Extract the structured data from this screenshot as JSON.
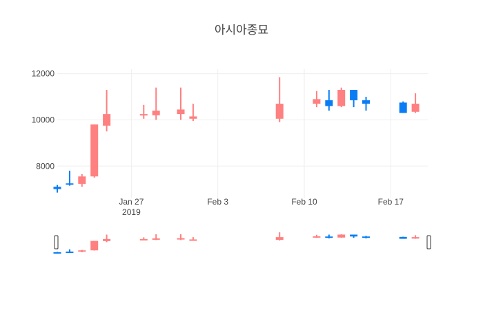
{
  "chart_data": {
    "type": "candlestick",
    "title": "아시아종묘",
    "xlabel": "",
    "ylabel": "",
    "ylim": [
      6600,
      12200
    ],
    "xlim": [
      "2019-01-21",
      "2019-02-20"
    ],
    "y_ticks": [
      "8000",
      "10000",
      "12000"
    ],
    "x_ticks": [
      {
        "date": "2019-01-27",
        "label": "Jan 27",
        "sublabel": "2019"
      },
      {
        "date": "2019-02-03",
        "label": "Feb 3",
        "sublabel": ""
      },
      {
        "date": "2019-02-10",
        "label": "Feb 10",
        "sublabel": ""
      },
      {
        "date": "2019-02-17",
        "label": "Feb 17",
        "sublabel": ""
      }
    ],
    "grid": true,
    "range_slider": true,
    "increasing_color": "#ff8080",
    "decreasing_color": "#0a7df5",
    "candles": [
      {
        "date": "2019-01-21",
        "open": 7100,
        "high": 7180,
        "low": 6850,
        "close": 7000
      },
      {
        "date": "2019-01-22",
        "open": 7250,
        "high": 7800,
        "low": 7150,
        "close": 7200
      },
      {
        "date": "2019-01-23",
        "open": 7230,
        "high": 7650,
        "low": 7100,
        "close": 7550
      },
      {
        "date": "2019-01-24",
        "open": 7550,
        "high": 9800,
        "low": 7500,
        "close": 9800
      },
      {
        "date": "2019-01-25",
        "open": 9750,
        "high": 11300,
        "low": 9500,
        "close": 10250
      },
      {
        "date": "2019-01-28",
        "open": 10200,
        "high": 10650,
        "low": 10050,
        "close": 10250
      },
      {
        "date": "2019-01-29",
        "open": 10200,
        "high": 11400,
        "low": 10000,
        "close": 10400
      },
      {
        "date": "2019-01-31",
        "open": 10250,
        "high": 11400,
        "low": 10000,
        "close": 10450
      },
      {
        "date": "2019-02-01",
        "open": 10050,
        "high": 10700,
        "low": 9950,
        "close": 10150
      },
      {
        "date": "2019-02-08",
        "open": 10050,
        "high": 11850,
        "low": 9900,
        "close": 10700
      },
      {
        "date": "2019-02-11",
        "open": 10700,
        "high": 11250,
        "low": 10550,
        "close": 10900
      },
      {
        "date": "2019-02-12",
        "open": 10850,
        "high": 11300,
        "low": 10400,
        "close": 10600
      },
      {
        "date": "2019-02-13",
        "open": 10600,
        "high": 11400,
        "low": 10550,
        "close": 11300
      },
      {
        "date": "2019-02-14",
        "open": 11300,
        "high": 11300,
        "low": 10550,
        "close": 10850
      },
      {
        "date": "2019-02-15",
        "open": 10850,
        "high": 11000,
        "low": 10400,
        "close": 10700
      },
      {
        "date": "2019-02-18",
        "open": 10750,
        "high": 10800,
        "low": 10300,
        "close": 10300
      },
      {
        "date": "2019-02-19",
        "open": 10350,
        "high": 11150,
        "low": 10300,
        "close": 10700
      }
    ]
  }
}
